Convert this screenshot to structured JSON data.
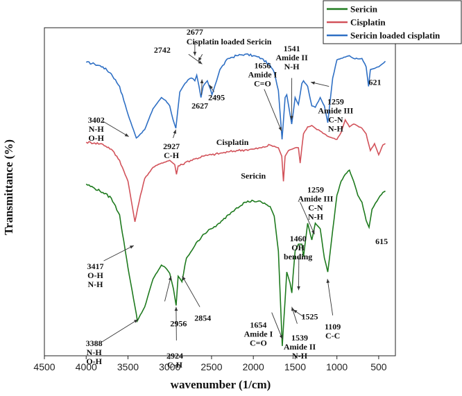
{
  "chart_data": {
    "type": "line",
    "title": "",
    "xlabel": "wavenumber (1/cm)",
    "ylabel": "Transmittance (%)",
    "xlim": [
      4500,
      300
    ],
    "x_ticks": [
      "4500",
      "4000",
      "3500",
      "3000",
      "2500",
      "2000",
      "1500",
      "1000",
      "500"
    ],
    "y_ticks_shown": false,
    "grid": false,
    "legend_position": "top-right",
    "colors": {
      "Sericin": "#1e7a1e",
      "Cisplatin": "#d2525a",
      "Sericin loaded cisplatin": "#2e6fc4"
    },
    "series": [
      {
        "name": "Sericin loaded cisplatin",
        "curve_label": "Cisplatin loaded Sericin",
        "x": [
          4000,
          3900,
          3800,
          3700,
          3600,
          3500,
          3400,
          3300,
          3200,
          3100,
          3050,
          3000,
          2960,
          2927,
          2880,
          2850,
          2800,
          2742,
          2700,
          2677,
          2650,
          2627,
          2600,
          2550,
          2495,
          2400,
          2300,
          2200,
          2100,
          2000,
          1900,
          1800,
          1750,
          1700,
          1656,
          1620,
          1600,
          1541,
          1500,
          1460,
          1420,
          1400,
          1350,
          1300,
          1259,
          1200,
          1150,
          1109,
          1080,
          1050,
          1000,
          900,
          850,
          800,
          700,
          650,
          621,
          600,
          500,
          420
        ],
        "y": [
          75.3,
          74.0,
          72.0,
          67.0,
          58.0,
          38.0,
          21.0,
          27.0,
          42.0,
          50.0,
          48.0,
          44.0,
          34.0,
          28.0,
          54.0,
          57.0,
          61.0,
          64.0,
          62.0,
          66.0,
          58.0,
          50.0,
          58.0,
          62.0,
          52.0,
          70.0,
          78.0,
          80.0,
          81.0,
          80.0,
          78.0,
          73.0,
          68.0,
          55.0,
          20.0,
          50.0,
          52.0,
          31.0,
          50.0,
          45.0,
          60.0,
          62.0,
          58.0,
          44.0,
          43.0,
          50.0,
          44.0,
          32.0,
          48.0,
          64.0,
          77.0,
          79.0,
          80.0,
          78.0,
          78.0,
          72.0,
          58.0,
          70.0,
          72.0,
          76.0
        ]
      },
      {
        "name": "Cisplatin",
        "curve_label": "Cisplatin",
        "x": [
          4000,
          3900,
          3800,
          3700,
          3600,
          3500,
          3417,
          3350,
          3300,
          3200,
          3100,
          3000,
          2940,
          2920,
          2900,
          2850,
          2800,
          2700,
          2600,
          2500,
          2400,
          2300,
          2200,
          2100,
          2000,
          1900,
          1800,
          1700,
          1660,
          1640,
          1620,
          1580,
          1500,
          1460,
          1440,
          1420,
          1400,
          1350,
          1300,
          1259,
          1200,
          1150,
          1100,
          1000,
          950,
          900,
          850,
          800,
          700,
          650,
          600,
          550,
          500,
          450,
          420
        ],
        "y": [
          18.0,
          17.5,
          16.5,
          13.0,
          5.0,
          -10.0,
          -39.0,
          -20.0,
          -8.0,
          0.0,
          3.0,
          5.0,
          2.0,
          -5.0,
          1.0,
          2.0,
          4.0,
          6.0,
          8.0,
          9.0,
          10.0,
          11.0,
          12.0,
          12.5,
          13.0,
          14.0,
          16.0,
          14.0,
          8.0,
          -10.0,
          8.0,
          12.0,
          14.0,
          14.0,
          3.0,
          14.0,
          24.0,
          29.0,
          30.0,
          28.0,
          26.0,
          24.0,
          22.0,
          20.0,
          25.0,
          34.0,
          29.0,
          31.0,
          28.0,
          24.0,
          12.0,
          17.0,
          9.0,
          16.0,
          17.0
        ]
      },
      {
        "name": "Sericin",
        "curve_label": "Sericin",
        "x": [
          4000,
          3900,
          3800,
          3700,
          3600,
          3500,
          3400,
          3388,
          3300,
          3200,
          3100,
          3050,
          3000,
          2956,
          2924,
          2900,
          2854,
          2800,
          2700,
          2600,
          2500,
          2400,
          2300,
          2200,
          2100,
          2000,
          1900,
          1800,
          1750,
          1700,
          1654,
          1620,
          1600,
          1560,
          1539,
          1525,
          1500,
          1460,
          1420,
          1400,
          1350,
          1300,
          1259,
          1200,
          1150,
          1109,
          1050,
          1000,
          950,
          900,
          850,
          800,
          750,
          700,
          650,
          615,
          580,
          500,
          450,
          420
        ],
        "y": [
          -12.0,
          -15.0,
          -18.0,
          -22.0,
          -34.0,
          -72.0,
          -105.0,
          -110.0,
          -100.0,
          -80.0,
          -70.0,
          -72.0,
          -76.0,
          -87.0,
          -99.0,
          -78.0,
          -82.0,
          -65.0,
          -56.0,
          -48.0,
          -44.0,
          -40.0,
          -34.0,
          -29.0,
          -25.0,
          -24.0,
          -25.0,
          -28.0,
          -35.0,
          -60.0,
          -128.0,
          -95.0,
          -75.0,
          -83.0,
          -90.0,
          -78.0,
          -60.0,
          -55.0,
          -55.0,
          -64.0,
          -40.0,
          -52.0,
          -40.0,
          -44.0,
          -65.0,
          -75.0,
          -45.0,
          -20.0,
          -10.0,
          -5.0,
          -2.0,
          -10.0,
          -20.0,
          -25.0,
          -38.0,
          -43.0,
          -30.0,
          -22.0,
          -18.0,
          -17.0
        ]
      }
    ],
    "annotations": [
      {
        "lines": [
          "Cisplatin loaded Sericin"
        ],
        "x": 2800,
        "y": 88,
        "anchor": "start"
      },
      {
        "lines": [
          "2677"
        ],
        "x": 2700,
        "y": 95,
        "anchor": "middle"
      },
      {
        "lines": [
          "2742"
        ],
        "x": 3190,
        "y": 82,
        "anchor": "start"
      },
      {
        "lines": [
          "2627"
        ],
        "x": 2640,
        "y": 42,
        "anchor": "middle"
      },
      {
        "lines": [
          "2495"
        ],
        "x": 2440,
        "y": 48,
        "anchor": "middle"
      },
      {
        "lines": [
          "1656",
          "Amide I",
          "C=O"
        ],
        "x": 1890,
        "y": 71,
        "anchor": "middle"
      },
      {
        "lines": [
          "1541",
          "Amide II",
          "N-H"
        ],
        "x": 1540,
        "y": 83,
        "anchor": "middle"
      },
      {
        "lines": [
          "621"
        ],
        "x": 545,
        "y": 59,
        "anchor": "middle"
      },
      {
        "lines": [
          "1259",
          "Amide III",
          "C-N",
          "N-H"
        ],
        "x": 1015,
        "y": 45,
        "anchor": "middle"
      },
      {
        "lines": [
          "3402",
          "N-H",
          "O-H"
        ],
        "x": 3880,
        "y": 32,
        "anchor": "middle"
      },
      {
        "lines": [
          "2927",
          "C-H"
        ],
        "x": 2980,
        "y": 13,
        "anchor": "middle"
      },
      {
        "lines": [
          "Cisplatin"
        ],
        "x": 2250,
        "y": 16,
        "anchor": "middle"
      },
      {
        "lines": [
          "Sericin"
        ],
        "x": 2000,
        "y": -8,
        "anchor": "middle"
      },
      {
        "lines": [
          "1259",
          "Amide III",
          "C-N",
          "N-H"
        ],
        "x": 1255,
        "y": -18,
        "anchor": "middle"
      },
      {
        "lines": [
          "1460",
          "OH",
          "bending"
        ],
        "x": 1465,
        "y": -53,
        "anchor": "middle"
      },
      {
        "lines": [
          "615"
        ],
        "x": 465,
        "y": -55,
        "anchor": "middle"
      },
      {
        "lines": [
          "3417",
          "O-H",
          "N-H"
        ],
        "x": 3890,
        "y": -73,
        "anchor": "middle"
      },
      {
        "lines": [
          "2956"
        ],
        "x": 2895,
        "y": -114,
        "anchor": "middle"
      },
      {
        "lines": [
          "2854"
        ],
        "x": 2605,
        "y": -110,
        "anchor": "middle"
      },
      {
        "lines": [
          "1525"
        ],
        "x": 1325,
        "y": -109,
        "anchor": "middle"
      },
      {
        "lines": [
          "1654",
          "Amide I",
          "C=O"
        ],
        "x": 1940,
        "y": -115,
        "anchor": "middle"
      },
      {
        "lines": [
          "1539",
          "Amide II",
          "N-H"
        ],
        "x": 1445,
        "y": -124,
        "anchor": "middle"
      },
      {
        "lines": [
          "1109",
          "C-C"
        ],
        "x": 1050,
        "y": -116,
        "anchor": "middle"
      },
      {
        "lines": [
          "3388",
          "N-H",
          "O-H"
        ],
        "x": 3905,
        "y": -128,
        "anchor": "middle"
      },
      {
        "lines": [
          "2924",
          "C-H"
        ],
        "x": 2940,
        "y": -137,
        "anchor": "middle"
      }
    ],
    "arrows": [
      {
        "from": [
          2775,
          81
        ],
        "to": [
          2612,
          74
        ]
      },
      {
        "from": [
          2610,
          81
        ],
        "to": [
          2658,
          76
        ]
      },
      {
        "from": [
          2700,
          90
        ],
        "to": [
          2700,
          80
        ]
      },
      {
        "from": [
          2620,
          52
        ],
        "to": [
          2614,
          63
        ]
      },
      {
        "from": [
          2470,
          54
        ],
        "to": [
          2525,
          59
        ]
      },
      {
        "from": [
          1870,
          56
        ],
        "to": [
          1663,
          26
        ]
      },
      {
        "from": [
          1540,
          64
        ],
        "to": [
          1542,
          34
        ]
      },
      {
        "from": [
          1095,
          58
        ],
        "to": [
          1312,
          61
        ]
      },
      {
        "from": [
          3800,
          33
        ],
        "to": [
          3490,
          22
        ]
      },
      {
        "from": [
          2960,
          21
        ],
        "to": [
          2927,
          27
        ]
      },
      {
        "from": [
          3790,
          -67
        ],
        "to": [
          3430,
          -56
        ]
      },
      {
        "from": [
          3060,
          -96
        ],
        "to": [
          2985,
          -78
        ]
      },
      {
        "from": [
          2640,
          -100
        ],
        "to": [
          2850,
          -78
        ]
      },
      {
        "from": [
          1440,
          -25
        ],
        "to": [
          1268,
          -48
        ]
      },
      {
        "from": [
          1455,
          -64
        ],
        "to": [
          1458,
          -88
        ]
      },
      {
        "from": [
          1400,
          -107
        ],
        "to": [
          1523,
          -102
        ]
      },
      {
        "from": [
          1780,
          -104
        ],
        "to": [
          1652,
          -123
        ]
      },
      {
        "from": [
          1475,
          -112
        ],
        "to": [
          1540,
          -100
        ]
      },
      {
        "from": [
          1050,
          -106
        ],
        "to": [
          1113,
          -80
        ]
      },
      {
        "from": [
          3810,
          -125
        ],
        "to": [
          3380,
          -109
        ]
      },
      {
        "from": [
          2920,
          -124
        ],
        "to": [
          2924,
          -100
        ]
      }
    ]
  }
}
